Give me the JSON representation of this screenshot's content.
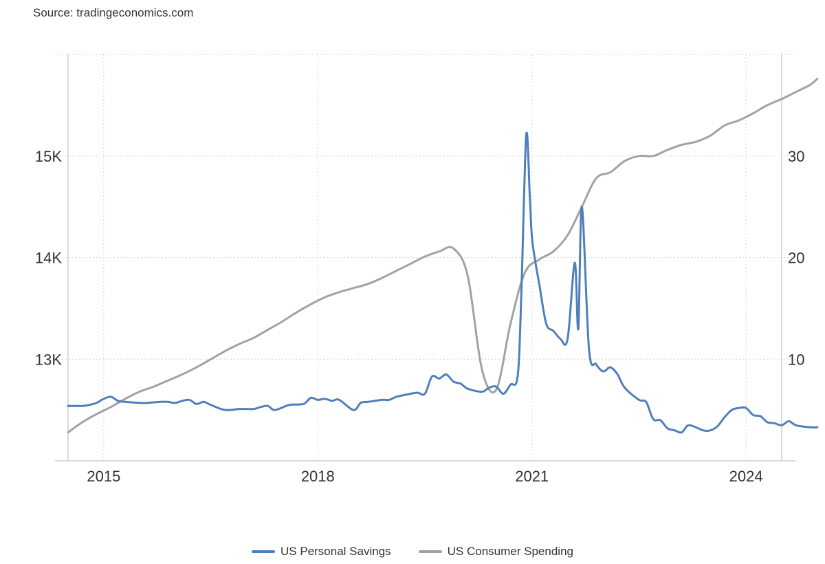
{
  "source": "Source: tradingeconomics.com",
  "chart_data": {
    "type": "line",
    "title": "",
    "xlabel": "",
    "ylabel": "",
    "x_ticks": [
      {
        "label": "2015",
        "value": 2015.0
      },
      {
        "label": "2018",
        "value": 2018.0
      },
      {
        "label": "2021",
        "value": 2021.0
      },
      {
        "label": "2024",
        "value": 2024.0
      }
    ],
    "xlim": [
      2014.5,
      2024.5
    ],
    "y_left": {
      "ticks": [
        {
          "label": "13K",
          "value": 13000
        },
        {
          "label": "14K",
          "value": 14000
        },
        {
          "label": "15K",
          "value": 15000
        }
      ],
      "range": [
        12000,
        16000
      ]
    },
    "y_right": {
      "ticks": [
        {
          "label": "10",
          "value": 10
        },
        {
          "label": "20",
          "value": 20
        },
        {
          "label": "30",
          "value": 30
        }
      ],
      "range": [
        0,
        40
      ]
    },
    "grid": true,
    "legend_position": "bottom-center",
    "series": [
      {
        "name": "US Personal Savings",
        "axis": "right",
        "color": "#4f7fbb",
        "points": [
          [
            2014.5,
            5.4
          ],
          [
            2014.6,
            5.4
          ],
          [
            2014.7,
            5.4
          ],
          [
            2014.8,
            5.5
          ],
          [
            2014.9,
            5.7
          ],
          [
            2015.0,
            6.1
          ],
          [
            2015.1,
            6.3
          ],
          [
            2015.2,
            5.9
          ],
          [
            2015.3,
            5.8
          ],
          [
            2015.5,
            5.7
          ],
          [
            2015.6,
            5.7
          ],
          [
            2015.8,
            5.8
          ],
          [
            2015.9,
            5.8
          ],
          [
            2016.0,
            5.7
          ],
          [
            2016.1,
            5.9
          ],
          [
            2016.2,
            6.0
          ],
          [
            2016.3,
            5.6
          ],
          [
            2016.4,
            5.8
          ],
          [
            2016.5,
            5.5
          ],
          [
            2016.7,
            5.0
          ],
          [
            2016.9,
            5.1
          ],
          [
            2017.1,
            5.1
          ],
          [
            2017.2,
            5.3
          ],
          [
            2017.3,
            5.4
          ],
          [
            2017.4,
            5.0
          ],
          [
            2017.6,
            5.5
          ],
          [
            2017.8,
            5.6
          ],
          [
            2017.9,
            6.2
          ],
          [
            2018.0,
            6.0
          ],
          [
            2018.1,
            6.1
          ],
          [
            2018.2,
            5.9
          ],
          [
            2018.3,
            6.0
          ],
          [
            2018.5,
            5.0
          ],
          [
            2018.6,
            5.7
          ],
          [
            2018.7,
            5.8
          ],
          [
            2018.9,
            6.0
          ],
          [
            2019.0,
            6.0
          ],
          [
            2019.1,
            6.3
          ],
          [
            2019.3,
            6.6
          ],
          [
            2019.4,
            6.7
          ],
          [
            2019.5,
            6.6
          ],
          [
            2019.6,
            8.3
          ],
          [
            2019.7,
            8.1
          ],
          [
            2019.8,
            8.5
          ],
          [
            2019.9,
            7.8
          ],
          [
            2020.0,
            7.6
          ],
          [
            2020.1,
            7.1
          ],
          [
            2020.3,
            6.8
          ],
          [
            2020.4,
            7.2
          ],
          [
            2020.5,
            7.3
          ],
          [
            2020.6,
            6.6
          ],
          [
            2020.7,
            7.5
          ],
          [
            2020.8,
            8.3
          ],
          [
            2020.85,
            16.0
          ],
          [
            2020.92,
            32.0
          ],
          [
            2020.97,
            26.0
          ],
          [
            2021.0,
            22.0
          ],
          [
            2021.05,
            19.5
          ],
          [
            2021.1,
            17.5
          ],
          [
            2021.2,
            13.5
          ],
          [
            2021.3,
            12.8
          ],
          [
            2021.4,
            12.0
          ],
          [
            2021.5,
            12.0
          ],
          [
            2021.6,
            19.5
          ],
          [
            2021.65,
            13.0
          ],
          [
            2021.7,
            25.0
          ],
          [
            2021.8,
            11.0
          ],
          [
            2021.9,
            9.5
          ],
          [
            2022.0,
            8.8
          ],
          [
            2022.1,
            9.2
          ],
          [
            2022.2,
            8.5
          ],
          [
            2022.3,
            7.2
          ],
          [
            2022.5,
            6.0
          ],
          [
            2022.6,
            5.8
          ],
          [
            2022.7,
            4.1
          ],
          [
            2022.8,
            4.0
          ],
          [
            2022.9,
            3.2
          ],
          [
            2023.0,
            3.0
          ],
          [
            2023.1,
            2.8
          ],
          [
            2023.2,
            3.5
          ],
          [
            2023.4,
            3.0
          ],
          [
            2023.5,
            3.0
          ],
          [
            2023.6,
            3.4
          ],
          [
            2023.7,
            4.3
          ],
          [
            2023.8,
            5.0
          ],
          [
            2023.9,
            5.2
          ],
          [
            2024.0,
            5.2
          ],
          [
            2024.1,
            4.5
          ],
          [
            2024.2,
            4.4
          ],
          [
            2024.3,
            3.8
          ],
          [
            2024.4,
            3.7
          ],
          [
            2024.5,
            3.5
          ],
          [
            2024.6,
            3.9
          ],
          [
            2024.7,
            3.5
          ],
          [
            2024.9,
            3.3
          ],
          [
            2025.0,
            3.3
          ]
        ]
      },
      {
        "name": "US Consumer Spending",
        "axis": "left",
        "color": "#a2a2a2",
        "points": [
          [
            2014.5,
            12280
          ],
          [
            2014.7,
            12380
          ],
          [
            2014.9,
            12460
          ],
          [
            2015.1,
            12530
          ],
          [
            2015.3,
            12610
          ],
          [
            2015.5,
            12680
          ],
          [
            2015.7,
            12730
          ],
          [
            2015.9,
            12790
          ],
          [
            2016.1,
            12850
          ],
          [
            2016.3,
            12920
          ],
          [
            2016.5,
            13000
          ],
          [
            2016.7,
            13080
          ],
          [
            2016.9,
            13150
          ],
          [
            2017.1,
            13210
          ],
          [
            2017.3,
            13290
          ],
          [
            2017.5,
            13370
          ],
          [
            2017.7,
            13460
          ],
          [
            2017.9,
            13540
          ],
          [
            2018.1,
            13610
          ],
          [
            2018.3,
            13660
          ],
          [
            2018.5,
            13700
          ],
          [
            2018.7,
            13740
          ],
          [
            2018.9,
            13800
          ],
          [
            2019.1,
            13870
          ],
          [
            2019.3,
            13940
          ],
          [
            2019.5,
            14010
          ],
          [
            2019.7,
            14060
          ],
          [
            2019.9,
            14090
          ],
          [
            2020.1,
            13820
          ],
          [
            2020.3,
            12900
          ],
          [
            2020.5,
            12700
          ],
          [
            2020.7,
            13350
          ],
          [
            2020.9,
            13850
          ],
          [
            2021.1,
            13980
          ],
          [
            2021.3,
            14060
          ],
          [
            2021.5,
            14220
          ],
          [
            2021.7,
            14500
          ],
          [
            2021.9,
            14780
          ],
          [
            2022.1,
            14840
          ],
          [
            2022.3,
            14950
          ],
          [
            2022.5,
            15000
          ],
          [
            2022.7,
            15000
          ],
          [
            2022.9,
            15060
          ],
          [
            2023.1,
            15110
          ],
          [
            2023.3,
            15140
          ],
          [
            2023.5,
            15200
          ],
          [
            2023.7,
            15300
          ],
          [
            2023.9,
            15350
          ],
          [
            2024.1,
            15420
          ],
          [
            2024.3,
            15500
          ],
          [
            2024.5,
            15560
          ],
          [
            2024.7,
            15630
          ],
          [
            2024.9,
            15700
          ],
          [
            2025.0,
            15760
          ]
        ]
      }
    ]
  }
}
